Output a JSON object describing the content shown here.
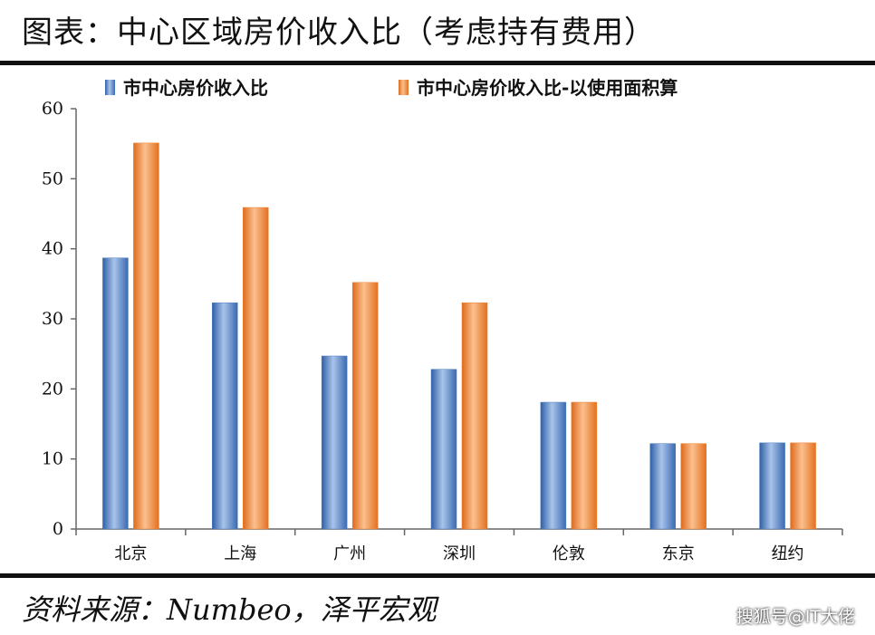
{
  "header": {
    "title": "图表：中心区域房价收入比（考虑持有费用）"
  },
  "source": "资料来源：Numbeo，泽平宏观",
  "watermark": "搜狐号@IT大佬",
  "colors": {
    "series1_main": "#4a7cc0",
    "series1_light": "#a9c4ea",
    "series2_main": "#ee7f2d",
    "series2_light": "#fbc08f"
  },
  "chart_data": {
    "type": "bar",
    "title": "图表：中心区域房价收入比（考虑持有费用）",
    "categories": [
      "北京",
      "上海",
      "广州",
      "深圳",
      "伦敦",
      "东京",
      "纽约"
    ],
    "series": [
      {
        "name": "市中心房价收入比",
        "values": [
          38.7,
          32.3,
          24.7,
          22.8,
          18.1,
          12.2,
          12.3
        ]
      },
      {
        "name": "市中心房价收入比-以使用面积算",
        "values": [
          55.1,
          45.9,
          35.2,
          32.3,
          18.1,
          12.2,
          12.3
        ]
      }
    ],
    "ylim": [
      0,
      60
    ],
    "yticks": [
      0,
      10,
      20,
      30,
      40,
      50,
      60
    ],
    "legend_position": "top",
    "grid": false
  }
}
